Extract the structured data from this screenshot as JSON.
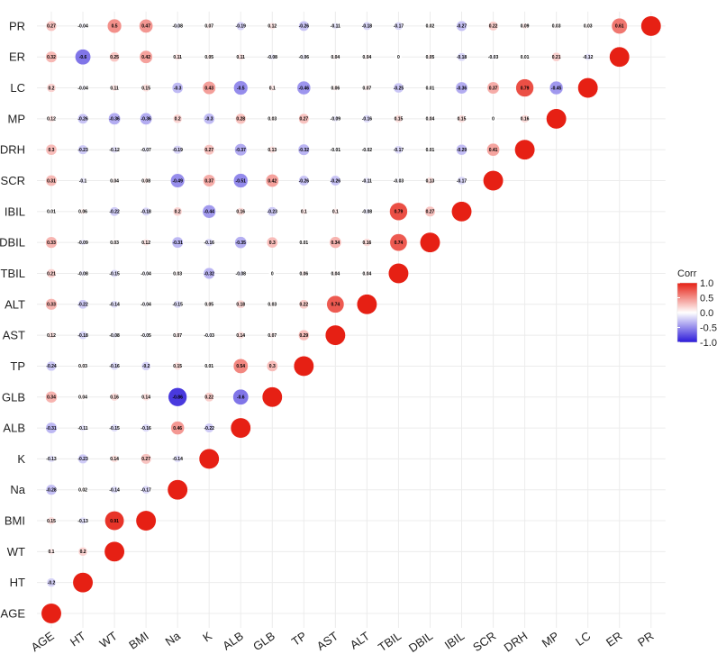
{
  "chart_data": {
    "type": "heatmap",
    "variables": [
      "AGE",
      "HT",
      "WT",
      "BMI",
      "Na",
      "K",
      "ALB",
      "GLB",
      "TP",
      "AST",
      "ALT",
      "TBIL",
      "DBIL",
      "IBIL",
      "SCR",
      "DRH",
      "MP",
      "LC",
      "ER",
      "PR"
    ],
    "matrix_lower_triangle_rows": [
      [],
      [
        -0.2
      ],
      [
        0.1,
        0.2
      ],
      [
        0.15,
        -0.13,
        0.91
      ],
      [
        -0.28,
        0.02,
        -0.14,
        -0.17
      ],
      [
        -0.13,
        -0.23,
        0.14,
        0.27,
        -0.14
      ],
      [
        -0.31,
        -0.11,
        -0.15,
        -0.16,
        0.46,
        -0.22
      ],
      [
        0.34,
        0.04,
        0.16,
        0.14,
        -0.86,
        0.22,
        -0.6
      ],
      [
        -0.24,
        0.03,
        -0.16,
        -0.2,
        0.15,
        0.01,
        0.54,
        0.3
      ],
      [
        0.12,
        -0.18,
        -0.08,
        -0.05,
        0.07,
        -0.03,
        0.14,
        0.07,
        0.29
      ],
      [
        0.33,
        -0.22,
        -0.14,
        -0.04,
        -0.15,
        0.05,
        0.18,
        0.03,
        0.22,
        0.74
      ],
      [
        0.21,
        -0.08,
        -0.15,
        -0.04,
        0.03,
        -0.32,
        -0.08,
        0,
        0.06,
        0.04,
        0.04
      ],
      [
        0.33,
        -0.09,
        0.03,
        0.12,
        -0.31,
        -0.16,
        -0.35,
        0.3,
        0.01,
        0.34,
        0.16,
        0.74
      ],
      [
        0.01,
        0.06,
        -0.22,
        -0.18,
        0.2,
        -0.44,
        0.16,
        -0.23,
        0.1,
        0.1,
        -0.08,
        0.79,
        0.27
      ],
      [
        0.31,
        -0.1,
        0.04,
        0.08,
        -0.49,
        0.37,
        -0.51,
        0.42,
        -0.26,
        -0.26,
        -0.11,
        -0.03,
        0.13,
        -0.17
      ],
      [
        0.3,
        -0.23,
        -0.12,
        -0.07,
        -0.19,
        0.27,
        -0.37,
        0.13,
        -0.32,
        -0.01,
        -0.02,
        -0.17,
        0.01,
        -0.29,
        0.41
      ],
      [
        0.12,
        -0.26,
        -0.36,
        -0.36,
        0.2,
        -0.3,
        0.28,
        0.03,
        0.27,
        -0.09,
        -0.16,
        0.15,
        0.04,
        0.15,
        0,
        0.16
      ],
      [
        0.2,
        -0.04,
        0.11,
        0.15,
        -0.3,
        0.43,
        -0.5,
        0.1,
        -0.46,
        0.06,
        0.07,
        -0.25,
        0.01,
        -0.36,
        0.37,
        0.79,
        -0.45
      ],
      [
        0.32,
        -0.6,
        0.25,
        0.42,
        0.11,
        0.05,
        0.11,
        -0.08,
        -0.06,
        0.04,
        0.04,
        0,
        0.05,
        -0.18,
        -0.03,
        0.01,
        0.21,
        -0.12
      ],
      [
        0.27,
        -0.04,
        0.5,
        0.47,
        -0.08,
        0.07,
        -0.19,
        0.12,
        -0.26,
        -0.11,
        -0.18,
        -0.17,
        0.02,
        -0.27,
        0.22,
        0.09,
        0.03,
        0.03,
        0.61
      ]
    ],
    "diagonal_value": 1,
    "scale": {
      "low_color": "#2b19d9",
      "mid_color": "#ffffff",
      "high_color": "#e62014",
      "min": -1,
      "max": 1
    },
    "legend": {
      "title": "Corr",
      "tick_labels": [
        "1.0",
        "0.5",
        "0.0",
        "-0.5",
        "-1.0"
      ],
      "tick_values": [
        1,
        0.5,
        0,
        -0.5,
        -1
      ],
      "position": "right"
    },
    "grid": true
  }
}
